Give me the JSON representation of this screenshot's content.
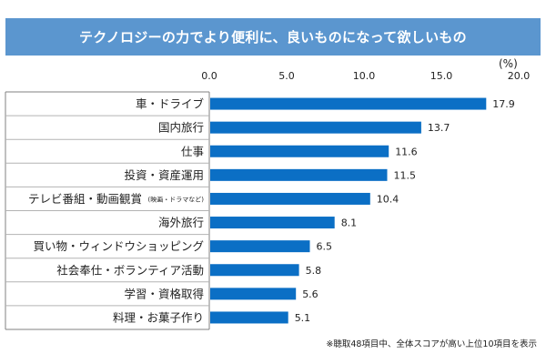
{
  "title": "テクノロジーの力でより便利に、良いものになって欲しいもの",
  "unit_label": "(%)",
  "footnote": "※聴取48項目中、全体スコアが高い上位10項目を表示",
  "colors": {
    "bar": "#0b6fc5",
    "title_bg": "#5b96cf"
  },
  "chart_data": {
    "type": "bar",
    "orientation": "horizontal",
    "title": "テクノロジーの力でより便利に、良いものになって欲しいもの",
    "xlabel": "(%)",
    "ylabel": "",
    "xlim": [
      0,
      20
    ],
    "ticks": [
      "0.0",
      "5.0",
      "10.0",
      "15.0",
      "20.0"
    ],
    "grid": false,
    "categories": [
      {
        "label": "車・ドライブ",
        "sub": ""
      },
      {
        "label": "国内旅行",
        "sub": ""
      },
      {
        "label": "仕事",
        "sub": ""
      },
      {
        "label": "投資・資産運用",
        "sub": ""
      },
      {
        "label": "テレビ番組・動画観賞",
        "sub": "(映画・ドラマなど)"
      },
      {
        "label": "海外旅行",
        "sub": ""
      },
      {
        "label": "買い物・ウィンドウショッピング",
        "sub": ""
      },
      {
        "label": "社会奉仕・ボランティア活動",
        "sub": ""
      },
      {
        "label": "学習・資格取得",
        "sub": ""
      },
      {
        "label": "料理・お菓子作り",
        "sub": ""
      }
    ],
    "values": [
      17.9,
      13.7,
      11.6,
      11.5,
      10.4,
      8.1,
      6.5,
      5.8,
      5.6,
      5.1
    ],
    "value_labels": [
      "17.9",
      "13.7",
      "11.6",
      "11.5",
      "10.4",
      "8.1",
      "6.5",
      "5.8",
      "5.6",
      "5.1"
    ]
  }
}
